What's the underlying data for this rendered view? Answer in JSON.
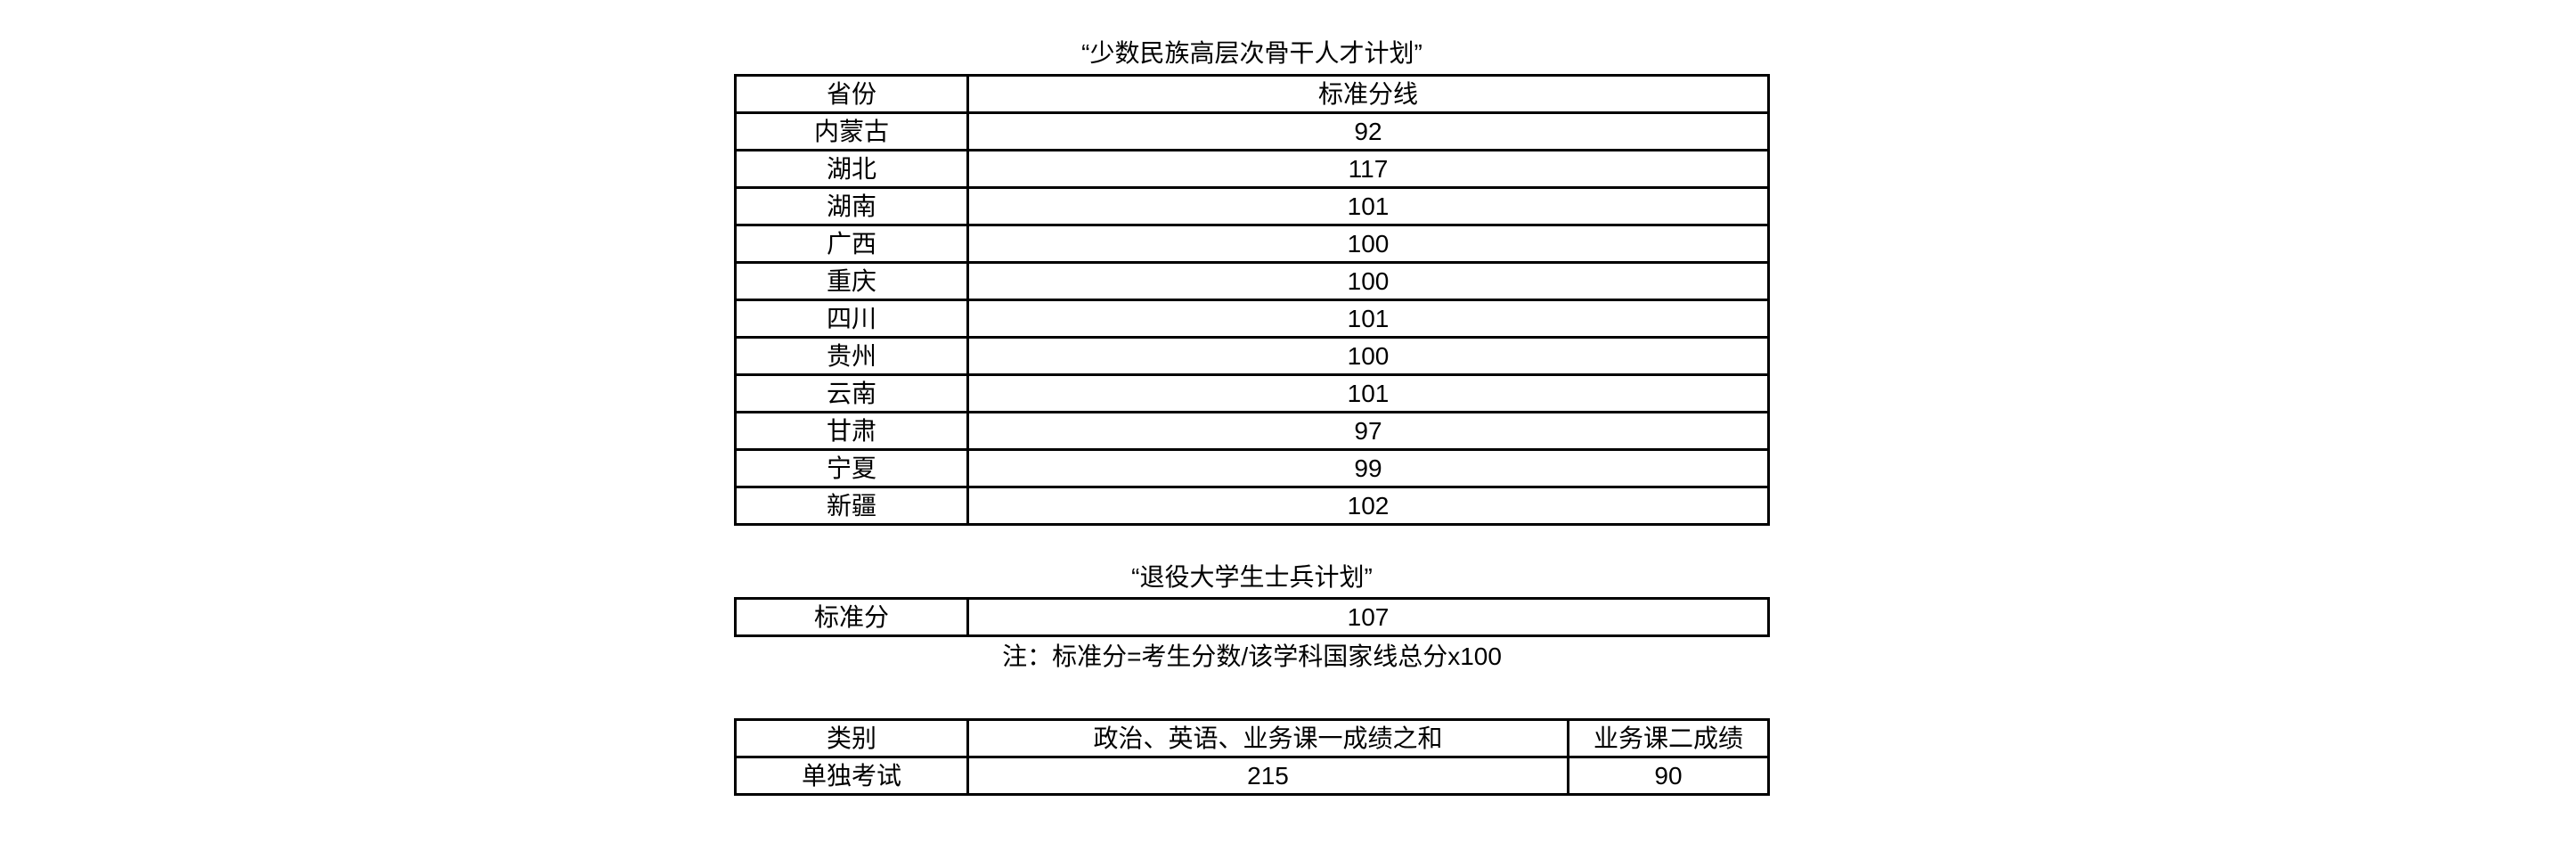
{
  "minority_plan": {
    "title": "“少数民族高层次骨干人才计划”",
    "headers": [
      "省份",
      "标准分线"
    ],
    "rows": [
      [
        "内蒙古",
        "92"
      ],
      [
        "湖北",
        "117"
      ],
      [
        "湖南",
        "101"
      ],
      [
        "广西",
        "100"
      ],
      [
        "重庆",
        "100"
      ],
      [
        "四川",
        "101"
      ],
      [
        "贵州",
        "100"
      ],
      [
        "云南",
        "101"
      ],
      [
        "甘肃",
        "97"
      ],
      [
        "宁夏",
        "99"
      ],
      [
        "新疆",
        "102"
      ]
    ]
  },
  "veteran_plan": {
    "title": "“退役大学生士兵计划”",
    "row": [
      "标准分",
      "107"
    ]
  },
  "note": "注：标准分=考生分数/该学科国家线总分x100",
  "separate_exam": {
    "headers": [
      "类别",
      "政治、英语、业务课一成绩之和",
      "业务课二成绩"
    ],
    "row": [
      "单独考试",
      "215",
      "90"
    ]
  }
}
